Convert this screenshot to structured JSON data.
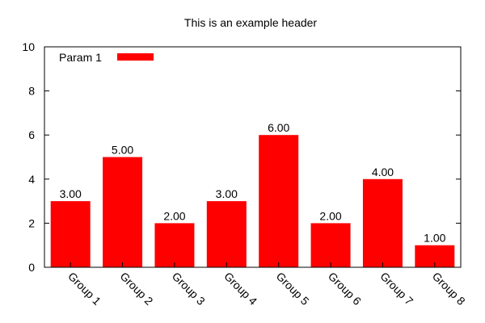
{
  "chart_data": {
    "type": "bar",
    "title": "This is an example header",
    "xlabel": "",
    "ylabel": "",
    "categories": [
      "Group 1",
      "Group 2",
      "Group 3",
      "Group 4",
      "Group 5",
      "Group 6",
      "Group 7",
      "Group 8"
    ],
    "series": [
      {
        "name": "Param 1",
        "color": "#ff0000",
        "values": [
          3.0,
          5.0,
          2.0,
          3.0,
          6.0,
          2.0,
          4.0,
          1.0
        ],
        "labels": [
          "3.00",
          "5.00",
          "2.00",
          "3.00",
          "6.00",
          "2.00",
          "4.00",
          "1.00"
        ]
      }
    ],
    "ylim": [
      0,
      10
    ],
    "yticks": [
      0,
      2,
      4,
      6,
      8,
      10
    ],
    "ytick_labels": [
      "0",
      "2",
      "4",
      "6",
      "8",
      "10"
    ],
    "grid": false,
    "legend": "top-left",
    "x_tick_rotation_deg": 45
  }
}
